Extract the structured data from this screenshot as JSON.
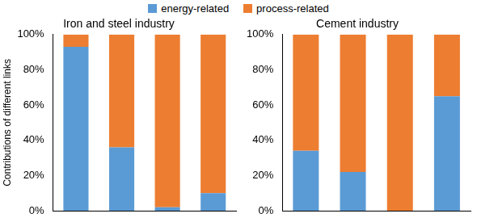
{
  "chart_data": [
    {
      "type": "bar",
      "title": "Iron and steel industry",
      "ylabel": "Contributions of different links",
      "categories": [
        null,
        null,
        null,
        null
      ],
      "series": [
        {
          "name": "energy-related",
          "color": "#5b9bd5",
          "values": [
            93,
            36,
            2,
            10
          ]
        },
        {
          "name": "process-related",
          "color": "#ed7d31",
          "values": [
            7,
            64,
            98,
            90
          ]
        }
      ],
      "stacked": true,
      "legend": "top",
      "grid": false,
      "tick_labels": "y",
      "ylim": [
        0,
        100
      ],
      "yticks": [
        {
          "value": 0,
          "label": "0%"
        },
        {
          "value": 20,
          "label": "20%"
        },
        {
          "value": 40,
          "label": "40%"
        },
        {
          "value": 60,
          "label": "60%"
        },
        {
          "value": 80,
          "label": "80%"
        },
        {
          "value": 100,
          "label": "100%"
        }
      ]
    },
    {
      "type": "bar",
      "title": "Cement industry",
      "categories": [
        null,
        null,
        null,
        null
      ],
      "series": [
        {
          "name": "energy-related",
          "color": "#5b9bd5",
          "values": [
            34,
            22,
            0,
            65
          ]
        },
        {
          "name": "process-related",
          "color": "#ed7d31",
          "values": [
            66,
            78,
            100,
            35
          ]
        }
      ],
      "stacked": true,
      "grid": false,
      "tick_labels": "y",
      "ylim": [
        0,
        100
      ],
      "yticks": [
        {
          "value": 0,
          "label": "0%"
        },
        {
          "value": 20,
          "label": "20%"
        },
        {
          "value": 40,
          "label": "40%"
        },
        {
          "value": 60,
          "label": "60%"
        },
        {
          "value": 80,
          "label": "80%"
        },
        {
          "value": 100,
          "label": "100%"
        }
      ]
    }
  ]
}
